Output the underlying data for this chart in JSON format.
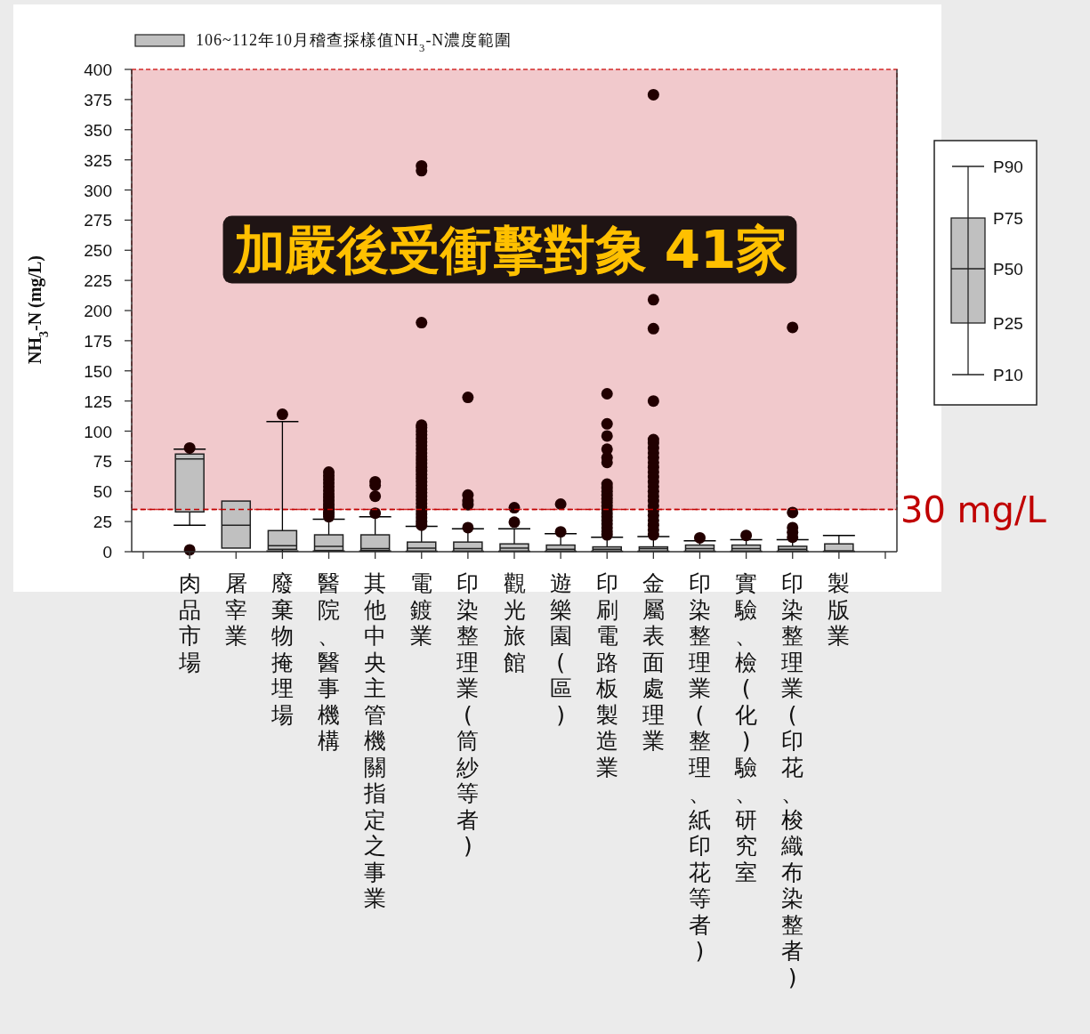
{
  "chart_data": {
    "type": "box",
    "ylabel": "NH$_{3}$-N (mg/L)",
    "ylim": [
      0,
      400
    ],
    "yticks": [
      0,
      25,
      50,
      75,
      100,
      125,
      150,
      175,
      200,
      225,
      250,
      275,
      300,
      325,
      350,
      375,
      400
    ],
    "legend": "top",
    "categories": [
      "肉品市場",
      "屠宰業",
      "廢棄物掩埋場",
      "醫院、醫事機構",
      "其他中央主管機關指定之事業",
      "電鍍業",
      "印染整理業(筒紗等者)",
      "觀光旅館",
      "遊樂園(區)",
      "印刷電路板製造業",
      "金屬表面處理業",
      "印染整理業(整理、紙印花等者)",
      "實驗、檢(化)驗、研究室",
      "印染整理業(印花、梭織布染整者)",
      "製版業"
    ],
    "series": [
      {
        "name": "106~112年10月稽查採樣值NH$_{3}$-N濃度範圍",
        "color": "#c0c0c0",
        "boxes": [
          {
            "low": 22,
            "q1": 33,
            "median": 77,
            "q3": 81,
            "high": 85,
            "outliers": [
              1.5,
              86
            ]
          },
          {
            "low": 3,
            "q1": 3,
            "median": 22,
            "q3": 42,
            "high": 42
          },
          {
            "low": 0.5,
            "q1": 2,
            "median": 5,
            "q3": 17.5,
            "high": 108,
            "outliers": [
              114
            ]
          },
          {
            "low": 0.5,
            "q1": 1,
            "median": 4.5,
            "q3": 14,
            "high": 27,
            "outliers": [
              29,
              31,
              33,
              36,
              39,
              42,
              45,
              48,
              51,
              54,
              57,
              60,
              63,
              66
            ]
          },
          {
            "low": 0.5,
            "q1": 1,
            "median": 2.5,
            "q3": 14,
            "high": 29,
            "outliers": [
              32,
              46,
              55,
              58
            ]
          },
          {
            "low": 0.3,
            "q1": 0.5,
            "median": 3,
            "q3": 8,
            "high": 21,
            "outliers": [
              22,
              25,
              28,
              31,
              34,
              37,
              40,
              43,
              46,
              49,
              52,
              55,
              58,
              61,
              64,
              67,
              70,
              73,
              76,
              79,
              82,
              85,
              88,
              91,
              94,
              97,
              100,
              103,
              105,
              190,
              316,
              320
            ]
          },
          {
            "low": 0.3,
            "q1": 0.5,
            "median": 2.5,
            "q3": 8,
            "high": 19,
            "outliers": [
              20,
              39,
              42,
              47,
              128
            ]
          },
          {
            "low": 0.3,
            "q1": 0.5,
            "median": 3,
            "q3": 6.5,
            "high": 19,
            "outliers": [
              24.5,
              36.5
            ]
          },
          {
            "low": 0.3,
            "q1": 0.5,
            "median": 2,
            "q3": 5.5,
            "high": 15,
            "outliers": [
              16.5,
              39.5
            ]
          },
          {
            "low": 0.3,
            "q1": 0.5,
            "median": 2,
            "q3": 4,
            "high": 12,
            "outliers": [
              14,
              17,
              20,
              23,
              26,
              29,
              32,
              35,
              38,
              41,
              44,
              47,
              50,
              53,
              56,
              74,
              78,
              85,
              96,
              106,
              131
            ]
          },
          {
            "low": 0.3,
            "q1": 0.5,
            "median": 2.5,
            "q3": 4,
            "high": 12.5,
            "outliers": [
              14,
              18,
              22,
              26,
              30,
              34,
              38,
              42,
              46,
              50,
              54,
              58,
              62,
              66,
              70,
              74,
              78,
              82,
              86,
              90,
              93,
              125,
              185,
              209,
              379
            ]
          },
          {
            "low": 0.3,
            "q1": 0.5,
            "median": 2.5,
            "q3": 5.5,
            "high": 9,
            "outliers": [
              11.5
            ]
          },
          {
            "low": 0.3,
            "q1": 0.5,
            "median": 2.5,
            "q3": 5.5,
            "high": 10,
            "outliers": [
              13.5
            ]
          },
          {
            "low": 0.3,
            "q1": 0.5,
            "median": 2,
            "q3": 4.5,
            "high": 10,
            "outliers": [
              12,
              16,
              20,
              32.5,
              186
            ]
          },
          {
            "low": 0.3,
            "q1": 0.5,
            "median": 0.5,
            "q3": 6.5,
            "high": 13.5
          }
        ]
      }
    ],
    "bands": [
      {
        "axis": "y",
        "from": 35,
        "to": 400,
        "label": "加嚴後受衝擊對象 41家",
        "color": "#f1c9cc"
      }
    ],
    "ref_lines": [
      {
        "axis": "y",
        "value": 35,
        "label": "30 mg/L",
        "color": "#c00000",
        "line_style": "dashed"
      }
    ],
    "annotations": [
      "P90",
      "P75",
      "P50",
      "P25",
      "P10"
    ]
  }
}
